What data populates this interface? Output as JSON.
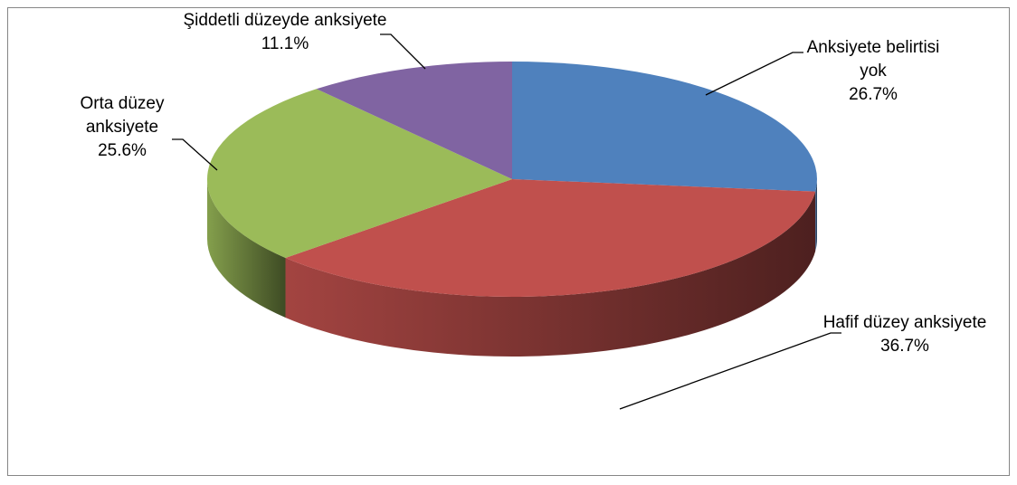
{
  "chart_data": {
    "type": "pie",
    "categories": [
      "Anksiyete belirtisi yok",
      "Hafif düzey anksiyete",
      "Orta düzey anksiyete",
      "Şiddetli düzeyde anksiyete"
    ],
    "values": [
      26.7,
      36.7,
      25.6,
      11.1
    ],
    "value_labels": [
      "26.7%",
      "36.7%",
      "25.6%",
      "11.1%"
    ],
    "colors": [
      "#4f81bd",
      "#c0504d",
      "#9bbb59",
      "#8064a2"
    ]
  }
}
